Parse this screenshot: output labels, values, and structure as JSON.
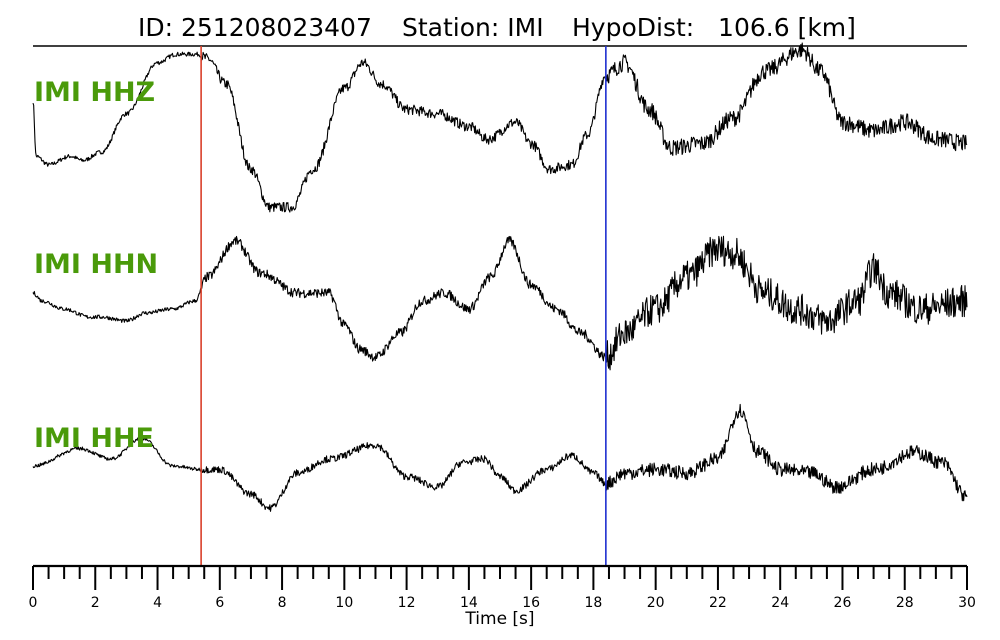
{
  "title": {
    "id": "ID: 251208023407",
    "station": "Station: IMI",
    "hypodist": "HypoDist:   106.6 [km]"
  },
  "chart_data": {
    "type": "line",
    "xlabel": "Time [s]",
    "xlim": [
      0,
      30
    ],
    "x_ticks": [
      0,
      2,
      4,
      6,
      8,
      10,
      12,
      14,
      16,
      18,
      20,
      22,
      24,
      26,
      28,
      30
    ],
    "minor_tick_step": 0.5,
    "grid": false,
    "label_color": "#4a9a0a",
    "trace_color": "#000000",
    "markers": [
      {
        "type": "P-pick",
        "time": 5.4,
        "color": "#d9402a"
      },
      {
        "type": "S-pick",
        "time": 18.4,
        "color": "#1f2fd0"
      }
    ],
    "series": [
      {
        "name": "IMI HHZ",
        "noise": 0.025,
        "noise_onsets": [
          [
            5.4,
            0.06
          ],
          [
            18.4,
            0.1
          ]
        ],
        "points": [
          [
            0,
            0.4
          ],
          [
            0.1,
            -0.25
          ],
          [
            0.5,
            -0.35
          ],
          [
            1.2,
            -0.25
          ],
          [
            1.6,
            -0.3
          ],
          [
            2.2,
            -0.2
          ],
          [
            3.0,
            0.25
          ],
          [
            4.0,
            0.85
          ],
          [
            4.6,
            0.95
          ],
          [
            5.3,
            0.95
          ],
          [
            5.6,
            0.9
          ],
          [
            6.2,
            0.6
          ],
          [
            7.0,
            -0.4
          ],
          [
            7.6,
            -0.85
          ],
          [
            8.3,
            -0.85
          ],
          [
            9.0,
            -0.4
          ],
          [
            10.0,
            0.55
          ],
          [
            10.6,
            0.85
          ],
          [
            11.2,
            0.6
          ],
          [
            12.0,
            0.3
          ],
          [
            13.0,
            0.25
          ],
          [
            14.0,
            0.1
          ],
          [
            14.6,
            -0.05
          ],
          [
            15.5,
            0.15
          ],
          [
            16.0,
            -0.1
          ],
          [
            16.6,
            -0.4
          ],
          [
            17.3,
            -0.35
          ],
          [
            17.8,
            0.0
          ],
          [
            18.4,
            0.7
          ],
          [
            19.0,
            0.85
          ],
          [
            19.8,
            0.3
          ],
          [
            20.5,
            -0.15
          ],
          [
            21.5,
            -0.1
          ],
          [
            22.5,
            0.2
          ],
          [
            23.5,
            0.75
          ],
          [
            24.7,
            1.0
          ],
          [
            25.3,
            0.75
          ],
          [
            26.0,
            0.15
          ],
          [
            27.0,
            0.05
          ],
          [
            28.0,
            0.15
          ],
          [
            29.0,
            -0.05
          ],
          [
            30.0,
            -0.1
          ]
        ]
      },
      {
        "name": "IMI HHN",
        "noise": 0.025,
        "noise_onsets": [
          [
            5.4,
            0.06
          ],
          [
            18.4,
            0.2
          ]
        ],
        "points": [
          [
            0,
            0.1
          ],
          [
            0.3,
            0.0
          ],
          [
            1.0,
            -0.1
          ],
          [
            1.8,
            -0.2
          ],
          [
            2.2,
            -0.2
          ],
          [
            3.0,
            -0.25
          ],
          [
            3.6,
            -0.15
          ],
          [
            4.5,
            -0.1
          ],
          [
            5.2,
            0.0
          ],
          [
            5.6,
            0.3
          ],
          [
            6.5,
            0.75
          ],
          [
            7.3,
            0.35
          ],
          [
            8.5,
            0.1
          ],
          [
            9.5,
            0.1
          ],
          [
            10.0,
            -0.3
          ],
          [
            10.5,
            -0.6
          ],
          [
            11.0,
            -0.7
          ],
          [
            11.8,
            -0.4
          ],
          [
            12.5,
            0.0
          ],
          [
            13.2,
            0.1
          ],
          [
            14.0,
            -0.1
          ],
          [
            14.7,
            0.3
          ],
          [
            15.3,
            0.75
          ],
          [
            16.0,
            0.2
          ],
          [
            16.8,
            -0.1
          ],
          [
            17.6,
            -0.4
          ],
          [
            18.4,
            -0.7
          ],
          [
            19.0,
            -0.4
          ],
          [
            20.0,
            -0.1
          ],
          [
            21.0,
            0.3
          ],
          [
            22.0,
            0.65
          ],
          [
            22.5,
            0.6
          ],
          [
            23.5,
            0.1
          ],
          [
            24.5,
            -0.1
          ],
          [
            25.5,
            -0.25
          ],
          [
            26.5,
            0.0
          ],
          [
            27.0,
            0.4
          ],
          [
            27.5,
            0.1
          ],
          [
            28.5,
            -0.1
          ],
          [
            30.0,
            0.0
          ]
        ]
      },
      {
        "name": "IMI HHE",
        "noise": 0.025,
        "noise_onsets": [
          [
            5.4,
            0.05
          ],
          [
            18.4,
            0.1
          ]
        ],
        "points": [
          [
            0,
            0.0
          ],
          [
            1.5,
            0.25
          ],
          [
            2.5,
            0.1
          ],
          [
            3.5,
            0.4
          ],
          [
            4.5,
            0.0
          ],
          [
            5.4,
            -0.05
          ],
          [
            6.0,
            -0.05
          ],
          [
            7.0,
            -0.4
          ],
          [
            7.6,
            -0.6
          ],
          [
            8.5,
            -0.1
          ],
          [
            9.5,
            0.1
          ],
          [
            11.0,
            0.3
          ],
          [
            12.0,
            -0.15
          ],
          [
            13.0,
            -0.3
          ],
          [
            13.8,
            0.05
          ],
          [
            14.5,
            0.1
          ],
          [
            15.0,
            -0.15
          ],
          [
            15.5,
            -0.35
          ],
          [
            16.5,
            -0.05
          ],
          [
            17.3,
            0.15
          ],
          [
            18.0,
            -0.1
          ],
          [
            18.4,
            -0.25
          ],
          [
            19.0,
            -0.1
          ],
          [
            20.0,
            -0.05
          ],
          [
            21.0,
            -0.1
          ],
          [
            22.0,
            0.1
          ],
          [
            22.7,
            0.8
          ],
          [
            23.3,
            0.2
          ],
          [
            24.0,
            -0.05
          ],
          [
            25.0,
            -0.1
          ],
          [
            25.8,
            -0.3
          ],
          [
            27.0,
            -0.05
          ],
          [
            28.3,
            0.2
          ],
          [
            29.2,
            0.05
          ],
          [
            30.0,
            -0.45
          ]
        ]
      }
    ]
  }
}
